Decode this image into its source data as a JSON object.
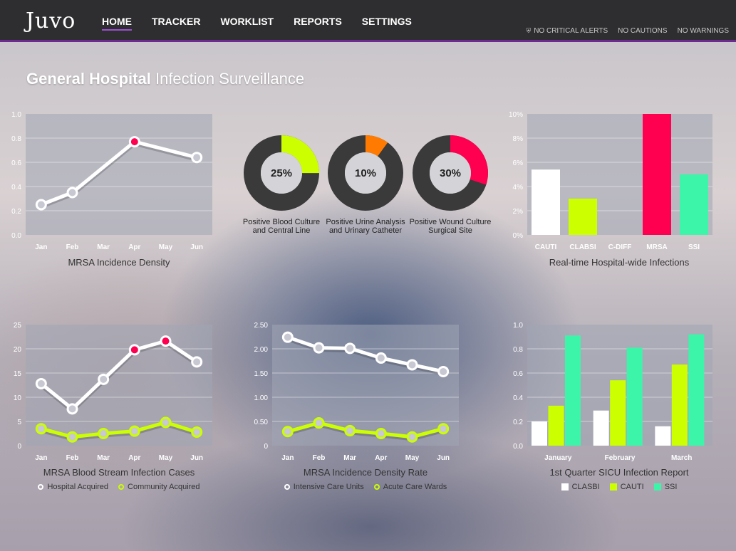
{
  "app": {
    "logo": "Juvo",
    "nav": [
      "HOME",
      "TRACKER",
      "WORKLIST",
      "REPORTS",
      "SETTINGS"
    ],
    "active_nav": "HOME",
    "alerts": [
      "NO CRITICAL ALERTS",
      "NO CAUTIONS",
      "NO WARNINGS"
    ],
    "accent_color": "#6d2a8f"
  },
  "page": {
    "title_bold": "General Hospital",
    "title_light": "Infection Surveillance"
  },
  "colors": {
    "white": "#ffffff",
    "lime": "#ccff00",
    "magenta": "#ff0050",
    "mint": "#3cf5a8",
    "orange": "#ff7a00",
    "donut_track": "#3a3a3a"
  },
  "chart_data": [
    {
      "id": "mrsa_density",
      "type": "line",
      "title": "MRSA Incidence Density",
      "categories": [
        "Jan",
        "Feb",
        "Mar",
        "Apr",
        "May",
        "Jun"
      ],
      "ylim": [
        0,
        1.0
      ],
      "yticks": [
        "0.0",
        "0.2",
        "0.4",
        "0.6",
        "0.8",
        "1.0"
      ],
      "series": [
        {
          "values": [
            0.25,
            0.35,
            null,
            0.77,
            null,
            0.64
          ],
          "highlight": [
            3
          ]
        }
      ]
    },
    {
      "id": "donuts",
      "type": "pie",
      "items": [
        {
          "value": 25,
          "label_text": "25%",
          "line1": "Positive Blood Culture",
          "line2": "and Central Line",
          "color": "#ccff00"
        },
        {
          "value": 10,
          "label_text": "10%",
          "line1": "Positive Urine Analysis",
          "line2": "and Urinary Catheter",
          "color": "#ff7a00"
        },
        {
          "value": 30,
          "label_text": "30%",
          "line1": "Positive Wound Culture",
          "line2": "Surgical Site",
          "color": "#ff0050"
        }
      ]
    },
    {
      "id": "realtime",
      "type": "bar",
      "title": "Real-time Hospital-wide Infections",
      "categories": [
        "CAUTI",
        "CLABSI",
        "C-DIFF",
        "MRSA",
        "SSI"
      ],
      "values": [
        5.4,
        3.0,
        0,
        10.0,
        5.0
      ],
      "colors": [
        "#ffffff",
        "#ccff00",
        "#ffffff",
        "#ff0050",
        "#3cf5a8"
      ],
      "ylim": [
        0,
        10
      ],
      "yticks": [
        "0%",
        "2%",
        "4%",
        "6%",
        "8%",
        "10%"
      ]
    },
    {
      "id": "bsi_cases",
      "type": "line",
      "title": "MRSA Blood Stream Infection Cases",
      "categories": [
        "Jan",
        "Feb",
        "Mar",
        "Apr",
        "May",
        "Jun"
      ],
      "ylim": [
        0,
        25
      ],
      "yticks": [
        "0",
        "5",
        "10",
        "15",
        "20",
        "25"
      ],
      "series": [
        {
          "name": "Hospital Acquired",
          "values": [
            12.8,
            7.6,
            13.7,
            19.8,
            21.6,
            17.3
          ],
          "color": "#ffffff",
          "highlight": [
            3,
            4
          ]
        },
        {
          "name": "Community Acquired",
          "values": [
            3.5,
            1.8,
            2.5,
            3.0,
            4.8,
            2.8
          ],
          "color": "#ccff00",
          "highlight": []
        }
      ]
    },
    {
      "id": "density_rate",
      "type": "line",
      "title": "MRSA Incidence Density Rate",
      "categories": [
        "Jan",
        "Feb",
        "Mar",
        "Apr",
        "May",
        "Jun"
      ],
      "ylim": [
        0,
        2.5
      ],
      "yticks": [
        "0",
        "0.50",
        "1.00",
        "1.50",
        "2.00",
        "2.50"
      ],
      "series": [
        {
          "name": "Intensive Care Units",
          "values": [
            2.24,
            2.02,
            2.01,
            1.81,
            1.67,
            1.53
          ],
          "color": "#ffffff",
          "highlight": []
        },
        {
          "name": "Acute Care Wards",
          "values": [
            0.29,
            0.47,
            0.31,
            0.25,
            0.18,
            0.35
          ],
          "color": "#ccff00",
          "highlight": []
        }
      ]
    },
    {
      "id": "sicu",
      "type": "bar",
      "title": "1st Quarter SICU Infection Report",
      "categories": [
        "January",
        "February",
        "March"
      ],
      "ylim": [
        0,
        1.0
      ],
      "yticks": [
        "0.0",
        "0.2",
        "0.4",
        "0.6",
        "0.8",
        "1.0"
      ],
      "series": [
        {
          "name": "CLASBI",
          "values": [
            0.2,
            0.29,
            0.16
          ],
          "color": "#ffffff"
        },
        {
          "name": "CAUTI",
          "values": [
            0.33,
            0.54,
            0.67
          ],
          "color": "#ccff00"
        },
        {
          "name": "SSI",
          "values": [
            0.91,
            0.81,
            0.92
          ],
          "color": "#3cf5a8"
        }
      ]
    }
  ]
}
